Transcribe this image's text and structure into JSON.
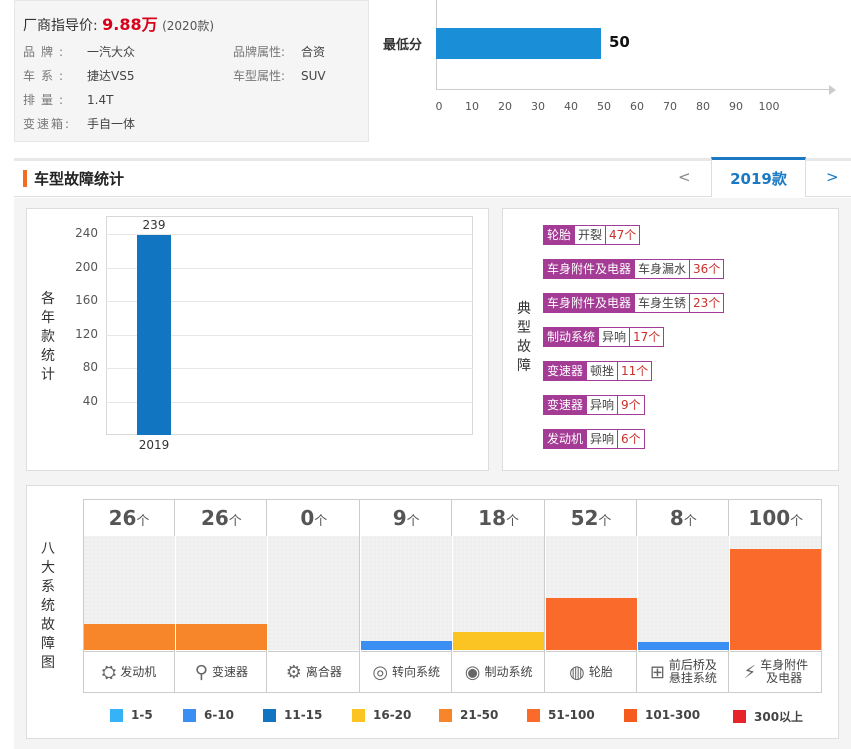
{
  "info": {
    "price_label": "厂商指导价:",
    "price_value": "9.88万",
    "price_year": "(2020款)",
    "brand_k": "品牌:",
    "brand_v": "一汽大众",
    "brand_attr_k": "品牌属性:",
    "brand_attr_v": "合资",
    "series_k": "车系:",
    "series_v": "捷达VS5",
    "type_attr_k": "车型属性:",
    "type_attr_v": "SUV",
    "disp_k": "排量:",
    "disp_v": "1.4T",
    "trans_k": "变速箱:",
    "trans_v": "手自一体"
  },
  "score": {
    "label": "最低分",
    "value": 50,
    "ticks": [
      "0",
      "10",
      "20",
      "30",
      "40",
      "50",
      "60",
      "70",
      "80",
      "90",
      "100"
    ],
    "bar_color": "#1a8fd8"
  },
  "section": {
    "title": "车型故障统计",
    "prev": "<",
    "next": ">",
    "year_tab": "2019款"
  },
  "year_chart": {
    "ylabel_chars": [
      "各",
      "年",
      "款",
      "统",
      "计"
    ],
    "yticks": [
      "40",
      "80",
      "120",
      "160",
      "200",
      "240"
    ],
    "chart_data": {
      "type": "bar",
      "categories": [
        "2019"
      ],
      "values": [
        239
      ],
      "ylim": [
        0,
        262
      ],
      "bar_color": "#1275c2"
    }
  },
  "faults": {
    "label_chars": [
      "典",
      "型",
      "故",
      "障"
    ],
    "items": [
      {
        "cat": "轮胎",
        "sym": "开裂",
        "cnt": "47个"
      },
      {
        "cat": "车身附件及电器",
        "sym": "车身漏水",
        "cnt": "36个"
      },
      {
        "cat": "车身附件及电器",
        "sym": "车身生锈",
        "cnt": "23个"
      },
      {
        "cat": "制动系统",
        "sym": "异响",
        "cnt": "17个"
      },
      {
        "cat": "变速器",
        "sym": "顿挫",
        "cnt": "11个"
      },
      {
        "cat": "变速器",
        "sym": "异响",
        "cnt": "9个"
      },
      {
        "cat": "发动机",
        "sym": "异响",
        "cnt": "6个"
      }
    ]
  },
  "systems": {
    "label_chars": [
      "八",
      "大",
      "系",
      "统",
      "故",
      "障",
      "图"
    ],
    "unit": "个",
    "chart_data": {
      "type": "bar",
      "ylim": [
        0,
        113
      ],
      "items": [
        {
          "name": "发动机",
          "icon": "engine-icon",
          "glyph": "⛭",
          "count": 26,
          "color": "#f7862a"
        },
        {
          "name": "变速器",
          "icon": "gear-shift-icon",
          "glyph": "⚲",
          "count": 26,
          "color": "#f7862a"
        },
        {
          "name": "离合器",
          "icon": "clutch-icon",
          "glyph": "⚙",
          "count": 0,
          "color": "#f7862a"
        },
        {
          "name": "转向系统",
          "icon": "steering-wheel-icon",
          "glyph": "◎",
          "count": 9,
          "color": "#3b8ff2"
        },
        {
          "name": "制动系统",
          "icon": "brake-icon",
          "glyph": "◉",
          "count": 18,
          "color": "#fbc423"
        },
        {
          "name": "轮胎",
          "icon": "tire-icon",
          "glyph": "◍",
          "count": 52,
          "color": "#fa6a2b"
        },
        {
          "name": "前后桥及悬挂系统",
          "name_lines": [
            "前后桥及",
            "悬挂系统"
          ],
          "icon": "suspension-icon",
          "glyph": "⊞",
          "count": 8,
          "color": "#3b8ff2"
        },
        {
          "name": "车身附件及电器",
          "name_lines": [
            "车身附件",
            "及电器"
          ],
          "icon": "battery-icon",
          "glyph": "⚡",
          "count": 100,
          "color": "#fa6a2b"
        }
      ]
    },
    "legend": [
      {
        "label": "1-5",
        "color": "#35b3f6"
      },
      {
        "label": "6-10",
        "color": "#3b8ff2"
      },
      {
        "label": "11-15",
        "color": "#1275c2"
      },
      {
        "label": "16-20",
        "color": "#fbc423"
      },
      {
        "label": "21-50",
        "color": "#f7862a"
      },
      {
        "label": "51-100",
        "color": "#fa6a2b"
      },
      {
        "label": "101-300",
        "color": "#f55a1f"
      },
      {
        "label": "300以上",
        "color": "#e8242b"
      }
    ]
  }
}
